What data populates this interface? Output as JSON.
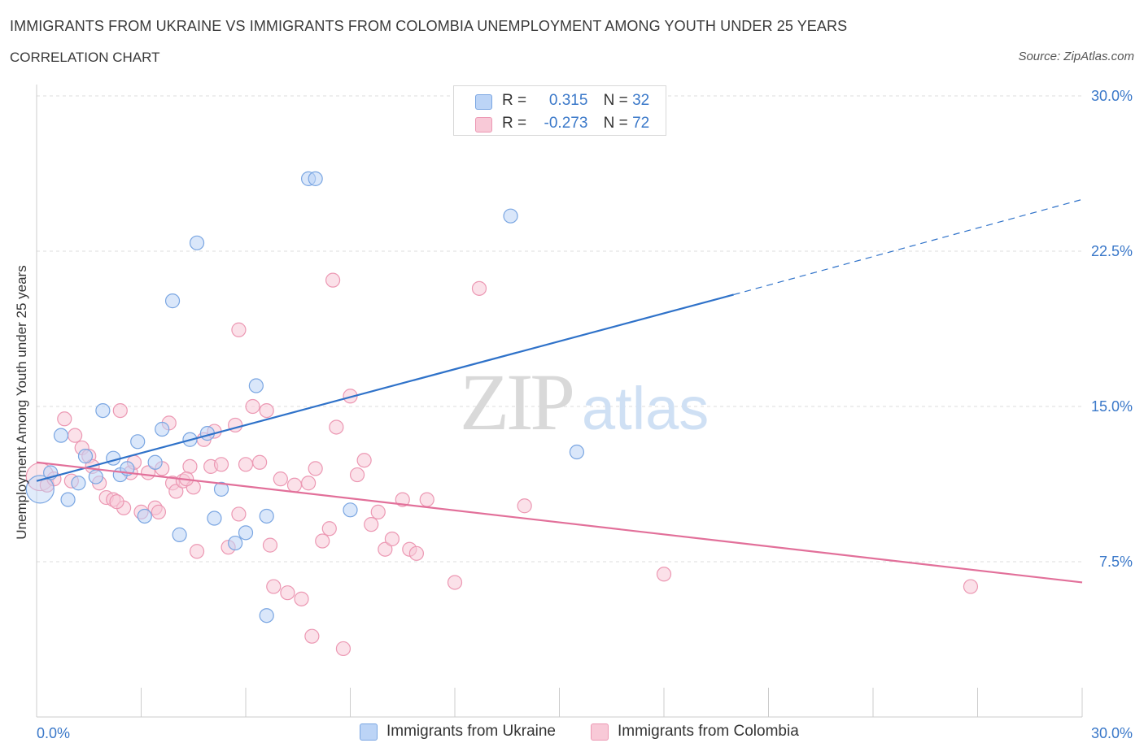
{
  "header": {
    "title": "IMMIGRANTS FROM UKRAINE VS IMMIGRANTS FROM COLOMBIA UNEMPLOYMENT AMONG YOUTH UNDER 25 YEARS",
    "subtitle": "CORRELATION CHART",
    "source": "Source: ZipAtlas.com"
  },
  "watermark": {
    "zip": "ZIP",
    "atlas": "atlas"
  },
  "legend": {
    "ukraine": {
      "r_label": "R =",
      "r_value": "0.315",
      "n_label": "N =",
      "n_value": "32"
    },
    "colombia": {
      "r_label": "R =",
      "r_value": "-0.273",
      "n_label": "N =",
      "n_value": "72"
    }
  },
  "colors": {
    "ukraine_fill": "#bcd4f6",
    "ukraine_stroke": "#7aa6e2",
    "ukraine_line": "#2f72c9",
    "colombia_fill": "#f8c9d7",
    "colombia_stroke": "#ec98b3",
    "colombia_line": "#e2709a",
    "axis_text": "#3a78c9",
    "grid": "#dddddd"
  },
  "chart_data": {
    "type": "scatter",
    "title": "IMMIGRANTS FROM UKRAINE VS IMMIGRANTS FROM COLOMBIA UNEMPLOYMENT AMONG YOUTH UNDER 25 YEARS",
    "xlabel": "",
    "ylabel": "Unemployment Among Youth under 25 years",
    "xlim": [
      0,
      30
    ],
    "ylim": [
      0,
      30
    ],
    "x_tick_labels": [
      "0.0%",
      "30.0%"
    ],
    "y_ticks": [
      7.5,
      15.0,
      22.5,
      30.0
    ],
    "y_tick_labels": [
      "7.5%",
      "15.0%",
      "22.5%",
      "30.0%"
    ],
    "grid": true,
    "series": [
      {
        "name": "Immigrants from Ukraine",
        "trend": {
          "x": [
            0,
            20
          ],
          "y": [
            11.4,
            20.4
          ],
          "dashed_to": [
            30,
            25.0
          ]
        },
        "points": [
          {
            "x": 0.1,
            "y": 11.0,
            "big": true
          },
          {
            "x": 0.4,
            "y": 11.8
          },
          {
            "x": 0.7,
            "y": 13.6
          },
          {
            "x": 0.9,
            "y": 10.5
          },
          {
            "x": 1.2,
            "y": 11.3
          },
          {
            "x": 1.4,
            "y": 12.6
          },
          {
            "x": 1.7,
            "y": 11.6
          },
          {
            "x": 1.9,
            "y": 14.8
          },
          {
            "x": 2.2,
            "y": 12.5
          },
          {
            "x": 2.4,
            "y": 11.7
          },
          {
            "x": 2.6,
            "y": 12.0
          },
          {
            "x": 2.9,
            "y": 13.3
          },
          {
            "x": 3.1,
            "y": 9.7
          },
          {
            "x": 3.4,
            "y": 12.3
          },
          {
            "x": 3.6,
            "y": 13.9
          },
          {
            "x": 3.9,
            "y": 20.1
          },
          {
            "x": 4.1,
            "y": 8.8
          },
          {
            "x": 4.4,
            "y": 13.4
          },
          {
            "x": 4.6,
            "y": 22.9
          },
          {
            "x": 4.9,
            "y": 13.7
          },
          {
            "x": 5.1,
            "y": 9.6
          },
          {
            "x": 5.3,
            "y": 11.0
          },
          {
            "x": 5.7,
            "y": 8.4
          },
          {
            "x": 6.0,
            "y": 8.9
          },
          {
            "x": 6.3,
            "y": 16.0
          },
          {
            "x": 6.6,
            "y": 9.7
          },
          {
            "x": 6.6,
            "y": 4.9
          },
          {
            "x": 7.8,
            "y": 26.0
          },
          {
            "x": 8.0,
            "y": 26.0
          },
          {
            "x": 9.0,
            "y": 10.0
          },
          {
            "x": 13.6,
            "y": 24.2
          },
          {
            "x": 15.5,
            "y": 12.8
          }
        ]
      },
      {
        "name": "Immigrants from Colombia",
        "trend": {
          "x": [
            0,
            30
          ],
          "y": [
            12.3,
            6.5
          ]
        },
        "points": [
          {
            "x": 0.1,
            "y": 11.6,
            "big": true
          },
          {
            "x": 0.3,
            "y": 11.2
          },
          {
            "x": 0.5,
            "y": 11.5
          },
          {
            "x": 0.8,
            "y": 14.4
          },
          {
            "x": 1.1,
            "y": 13.6
          },
          {
            "x": 1.3,
            "y": 13.0
          },
          {
            "x": 1.5,
            "y": 12.6
          },
          {
            "x": 1.6,
            "y": 12.1
          },
          {
            "x": 1.8,
            "y": 11.3
          },
          {
            "x": 2.0,
            "y": 10.6
          },
          {
            "x": 2.2,
            "y": 10.5
          },
          {
            "x": 2.4,
            "y": 14.8
          },
          {
            "x": 2.5,
            "y": 10.1
          },
          {
            "x": 2.7,
            "y": 11.8
          },
          {
            "x": 2.8,
            "y": 12.3
          },
          {
            "x": 3.0,
            "y": 9.9
          },
          {
            "x": 3.2,
            "y": 11.8
          },
          {
            "x": 3.4,
            "y": 10.1
          },
          {
            "x": 3.5,
            "y": 9.9
          },
          {
            "x": 3.6,
            "y": 12.0
          },
          {
            "x": 3.8,
            "y": 14.2
          },
          {
            "x": 3.9,
            "y": 11.3
          },
          {
            "x": 4.0,
            "y": 10.9
          },
          {
            "x": 4.2,
            "y": 11.4
          },
          {
            "x": 4.4,
            "y": 12.1
          },
          {
            "x": 4.5,
            "y": 11.1
          },
          {
            "x": 4.6,
            "y": 8.0
          },
          {
            "x": 4.8,
            "y": 13.4
          },
          {
            "x": 5.0,
            "y": 12.1
          },
          {
            "x": 5.1,
            "y": 13.8
          },
          {
            "x": 5.3,
            "y": 12.2
          },
          {
            "x": 5.5,
            "y": 8.2
          },
          {
            "x": 5.7,
            "y": 14.1
          },
          {
            "x": 5.8,
            "y": 18.7
          },
          {
            "x": 6.0,
            "y": 12.2
          },
          {
            "x": 6.2,
            "y": 15.0
          },
          {
            "x": 6.4,
            "y": 12.3
          },
          {
            "x": 6.6,
            "y": 14.8
          },
          {
            "x": 6.7,
            "y": 8.3
          },
          {
            "x": 6.8,
            "y": 6.3
          },
          {
            "x": 7.0,
            "y": 11.5
          },
          {
            "x": 7.2,
            "y": 6.0
          },
          {
            "x": 7.4,
            "y": 11.2
          },
          {
            "x": 7.6,
            "y": 5.7
          },
          {
            "x": 7.8,
            "y": 11.3
          },
          {
            "x": 7.9,
            "y": 3.9
          },
          {
            "x": 8.0,
            "y": 12.0
          },
          {
            "x": 8.2,
            "y": 8.5
          },
          {
            "x": 8.4,
            "y": 9.1
          },
          {
            "x": 8.5,
            "y": 21.1
          },
          {
            "x": 8.6,
            "y": 14.0
          },
          {
            "x": 8.8,
            "y": 3.3
          },
          {
            "x": 9.0,
            "y": 15.5
          },
          {
            "x": 9.2,
            "y": 11.7
          },
          {
            "x": 9.4,
            "y": 12.4
          },
          {
            "x": 9.6,
            "y": 9.3
          },
          {
            "x": 9.8,
            "y": 9.9
          },
          {
            "x": 10.0,
            "y": 8.1
          },
          {
            "x": 10.2,
            "y": 8.6
          },
          {
            "x": 10.5,
            "y": 10.5
          },
          {
            "x": 10.7,
            "y": 8.1
          },
          {
            "x": 10.9,
            "y": 7.9
          },
          {
            "x": 11.2,
            "y": 10.5
          },
          {
            "x": 12.0,
            "y": 6.5
          },
          {
            "x": 12.7,
            "y": 20.7
          },
          {
            "x": 14.0,
            "y": 10.2
          },
          {
            "x": 18.0,
            "y": 6.9
          },
          {
            "x": 26.8,
            "y": 6.3
          },
          {
            "x": 2.3,
            "y": 10.4
          },
          {
            "x": 1.0,
            "y": 11.4
          },
          {
            "x": 4.3,
            "y": 11.5
          },
          {
            "x": 5.8,
            "y": 9.8
          }
        ]
      }
    ]
  }
}
